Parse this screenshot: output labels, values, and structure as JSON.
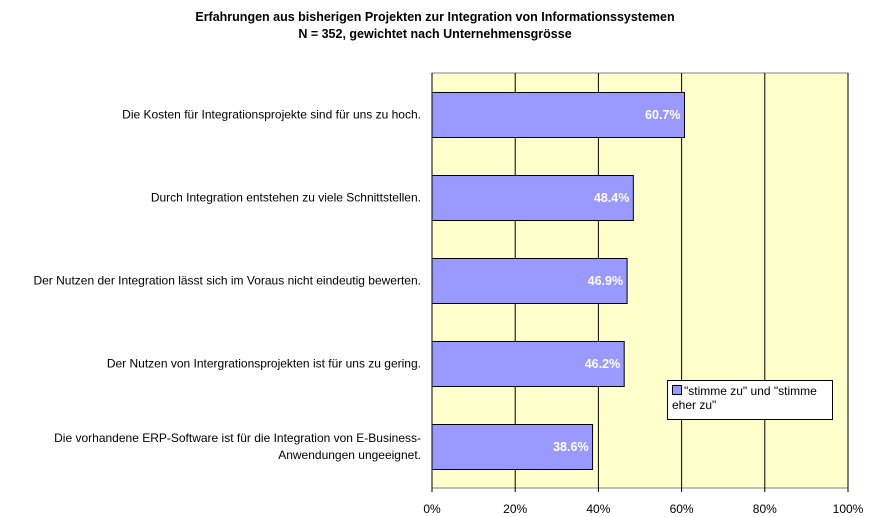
{
  "chart_data": {
    "type": "bar",
    "orientation": "horizontal",
    "title": "Erfahrungen aus bisherigen Projekten zur Integration von Informationssystemen",
    "subtitle": "N = 352, gewichtet nach Unternehmensgrösse",
    "categories": [
      "Die Kosten für Integrationsprojekte sind für uns zu hoch.",
      "Durch Integration entstehen zu viele Schnittstellen.",
      "Der Nutzen der Integration lässt sich im Voraus nicht eindeutig bewerten.",
      "Der Nutzen von Intergrationsprojekten ist für uns zu gering.",
      "Die vorhandene ERP-Software ist für die Integration von E-Business-Anwendungen ungeeignet."
    ],
    "series": [
      {
        "name": "\"stimme zu\" und \"stimme eher zu\"",
        "color": "#9999ff",
        "values": [
          60.7,
          48.4,
          46.9,
          46.2,
          38.6
        ],
        "value_labels": [
          "60.7%",
          "48.4%",
          "46.9%",
          "46.2%",
          "38.6%"
        ]
      }
    ],
    "xlim": [
      0,
      100
    ],
    "xticks": [
      {
        "value": 0,
        "label": "0%"
      },
      {
        "value": 20,
        "label": "20%"
      },
      {
        "value": 40,
        "label": "40%"
      },
      {
        "value": 60,
        "label": "60%"
      },
      {
        "value": 80,
        "label": "80%"
      },
      {
        "value": 100,
        "label": "100%"
      }
    ],
    "grid": true,
    "legend": "lower right",
    "plot_background": "#ffffcc"
  }
}
